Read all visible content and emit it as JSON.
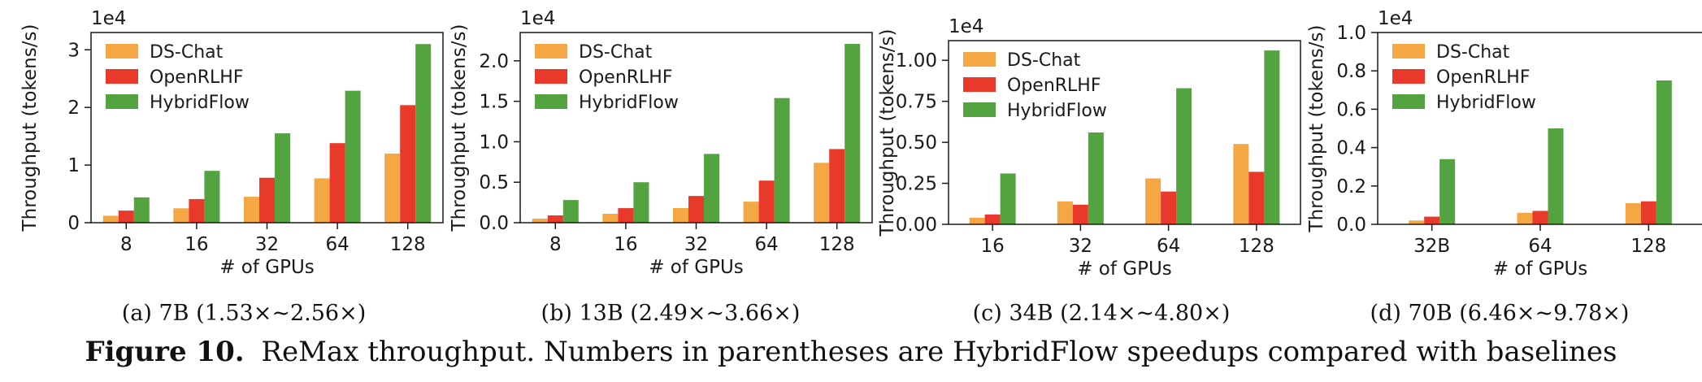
{
  "figure": {
    "title_bold": "Figure 10.",
    "title_rest": "ReMax throughput. Numbers in parentheses are HybridFlow speedups compared with baselines"
  },
  "colors": {
    "DS-Chat": "#f4a742",
    "OpenRLHF": "#e8392b",
    "HybridFlow": "#54a341"
  },
  "chart_data": [
    {
      "type": "bar",
      "id": "a",
      "caption": "(a)  7B (1.53×~2.56×)",
      "xlabel": "# of GPUs",
      "ylabel": "Throughput (tokens/s)",
      "multiplier": "1e4",
      "categories": [
        "8",
        "16",
        "32",
        "64",
        "128"
      ],
      "ylim": [
        0,
        3.3
      ],
      "yticks": [
        0,
        1,
        2,
        3
      ],
      "ytick_labels": [
        "0",
        "1",
        "2",
        "3"
      ],
      "series": [
        {
          "name": "DS-Chat",
          "values": [
            0.12,
            0.25,
            0.45,
            0.77,
            1.2
          ]
        },
        {
          "name": "OpenRLHF",
          "values": [
            0.21,
            0.41,
            0.78,
            1.38,
            2.04
          ]
        },
        {
          "name": "HybridFlow",
          "values": [
            0.44,
            0.9,
            1.55,
            2.29,
            3.1
          ]
        }
      ]
    },
    {
      "type": "bar",
      "id": "b",
      "caption": "(b)  13B (2.49×~3.66×)",
      "xlabel": "# of GPUs",
      "ylabel": "Throughput (tokens/s)",
      "multiplier": "1e4",
      "categories": [
        "8",
        "16",
        "32",
        "64",
        "128"
      ],
      "ylim": [
        0,
        2.35
      ],
      "yticks": [
        0,
        0.5,
        1.0,
        1.5,
        2.0
      ],
      "ytick_labels": [
        "0.0",
        "0.5",
        "1.0",
        "1.5",
        "2.0"
      ],
      "series": [
        {
          "name": "DS-Chat",
          "values": [
            0.05,
            0.11,
            0.18,
            0.26,
            0.74
          ]
        },
        {
          "name": "OpenRLHF",
          "values": [
            0.09,
            0.18,
            0.33,
            0.52,
            0.91
          ]
        },
        {
          "name": "HybridFlow",
          "values": [
            0.28,
            0.5,
            0.85,
            1.54,
            2.21
          ]
        }
      ]
    },
    {
      "type": "bar",
      "id": "c",
      "caption": "(c)  34B (2.14×~4.80×)",
      "xlabel": "# of GPUs",
      "ylabel": "Throughput (tokens/s)",
      "multiplier": "1e4",
      "categories": [
        "16",
        "32",
        "64",
        "128"
      ],
      "ylim": [
        0,
        1.12
      ],
      "yticks": [
        0,
        0.25,
        0.5,
        0.75,
        1.0
      ],
      "ytick_labels": [
        "0.00",
        "0.25",
        "0.50",
        "0.75",
        "1.00"
      ],
      "series": [
        {
          "name": "DS-Chat",
          "values": [
            0.04,
            0.14,
            0.28,
            0.49
          ]
        },
        {
          "name": "OpenRLHF",
          "values": [
            0.06,
            0.12,
            0.2,
            0.32
          ]
        },
        {
          "name": "HybridFlow",
          "values": [
            0.31,
            0.56,
            0.83,
            1.06
          ]
        }
      ]
    },
    {
      "type": "bar",
      "id": "d",
      "caption": "(d)  70B (6.46×~9.78×)",
      "xlabel": "# of GPUs",
      "ylabel": "Throughput (tokens/s)",
      "multiplier": "1e4",
      "categories": [
        "32B",
        "64",
        "128"
      ],
      "ylim": [
        0,
        1.0
      ],
      "yticks": [
        0,
        0.2,
        0.4,
        0.6,
        0.8,
        1.0
      ],
      "ytick_labels": [
        "0.0",
        "0.2",
        "0.4",
        "0.6",
        "0.8",
        "1.0"
      ],
      "series": [
        {
          "name": "DS-Chat",
          "values": [
            0.02,
            0.06,
            0.11
          ]
        },
        {
          "name": "OpenRLHF",
          "values": [
            0.04,
            0.07,
            0.12
          ]
        },
        {
          "name": "HybridFlow",
          "values": [
            0.34,
            0.5,
            0.75
          ]
        }
      ]
    }
  ]
}
